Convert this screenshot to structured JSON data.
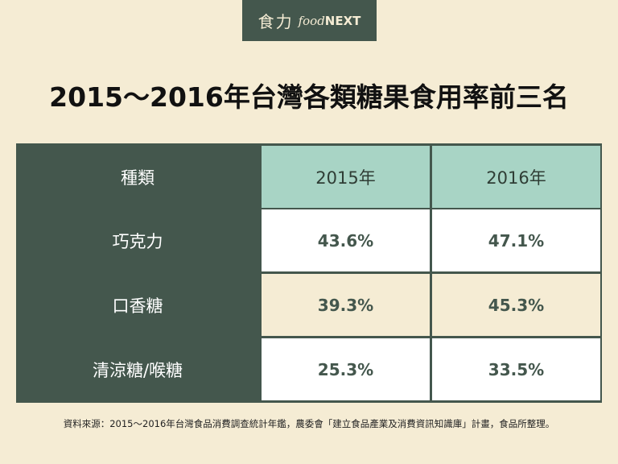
{
  "logo": {
    "cn": "食力",
    "en_prefix": "food",
    "en_suffix": "NEXT"
  },
  "title": "2015～2016年台灣各類糖果食用率前三名",
  "colors": {
    "dark": "#44574d",
    "header_mint": "#a8d4c5",
    "white_row": "#ffffff",
    "cream_row": "#f5ecd4"
  },
  "chart_data": {
    "type": "table",
    "title": "2015～2016年台灣各類糖果食用率前三名",
    "header": [
      "種類",
      "2015年",
      "2016年"
    ],
    "categories": [
      "巧克力",
      "口香糖",
      "清涼糖/喉糖"
    ],
    "series": [
      {
        "name": "2015年",
        "values": [
          "43.6%",
          "39.3%",
          "25.3%"
        ]
      },
      {
        "name": "2016年",
        "values": [
          "47.1%",
          "45.3%",
          "33.5%"
        ]
      }
    ]
  },
  "footnote": "資料來源：2015～2016年台灣食品消費調查統計年鑑，農委會「建立食品產業及消費資訊知識庫」計畫，食品所整理。"
}
